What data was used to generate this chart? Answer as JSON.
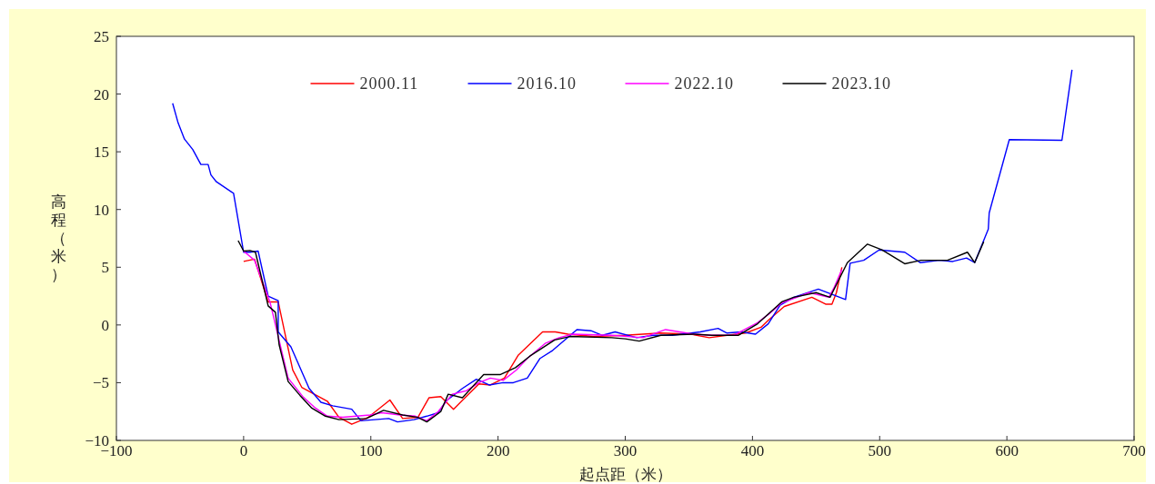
{
  "chart_data": {
    "type": "line",
    "xlabel": "起点距（米）",
    "ylabel": "高程（米）",
    "xlim": [
      -100,
      700
    ],
    "xticks": [
      -100,
      0,
      100,
      200,
      300,
      400,
      500,
      600,
      700
    ],
    "ylim": [
      -10,
      25
    ],
    "yticks": [
      -10,
      -5,
      0,
      5,
      10,
      15,
      20,
      25
    ],
    "legend": "top",
    "grid": false,
    "series": [
      {
        "name": "2000.11",
        "color": "#ff0000",
        "x": [
          0,
          8.6,
          19.3,
          27.2,
          38.6,
          45.7,
          65.8,
          75,
          85,
          98,
          115,
          125,
          137,
          145.8,
          155,
          165,
          185,
          194,
          205,
          216,
          235,
          245,
          255,
          275,
          299.5,
          328,
          351.7,
          366,
          380,
          394.6,
          406.7,
          412.4,
          425,
          446.7,
          457.5,
          462.5,
          466,
          470.3
        ],
        "values": [
          5.5,
          5.7,
          2.0,
          2.0,
          -3.9,
          -5.4,
          -6.6,
          -8.0,
          -8.6,
          -8.0,
          -6.5,
          -8.1,
          -8.0,
          -6.3,
          -6.2,
          -7.3,
          -5.1,
          -5.2,
          -4.6,
          -2.6,
          -0.6,
          -0.6,
          -0.8,
          -1.0,
          -0.9,
          -0.7,
          -0.8,
          -1.1,
          -0.9,
          -0.7,
          -0.2,
          0.4,
          1.6,
          2.4,
          1.8,
          1.8,
          2.8,
          5.0
        ]
      },
      {
        "name": "2016.10",
        "color": "#0000ff",
        "x": [
          -55.8,
          -51.5,
          -46.5,
          -40,
          -33.6,
          -27.9,
          -25.7,
          -21.4,
          -7.9,
          0,
          5,
          11.4,
          19.3,
          27.2,
          27.2,
          37.2,
          51.5,
          60.8,
          70,
          85,
          92.2,
          114,
          121,
          134,
          144,
          153,
          159,
          172,
          183,
          193,
          204,
          212,
          223,
          233,
          243,
          262,
          273,
          282,
          292,
          309,
          322,
          337,
          359,
          373,
          380,
          391,
          402.4,
          412.4,
          421.7,
          432.5,
          451.8,
          473.2,
          476.8,
          487.5,
          499.6,
          519.7,
          531.8,
          546.8,
          557.5,
          568.3,
          574.7,
          585.4,
          586.1,
          601.9,
          643.3,
          651.2
        ],
        "values": [
          19.2,
          17.5,
          16.1,
          15.2,
          13.9,
          13.9,
          13.0,
          12.4,
          11.4,
          6.3,
          6.3,
          6.4,
          2.5,
          2.1,
          -0.6,
          -1.9,
          -5.5,
          -6.7,
          -7.0,
          -7.3,
          -8.3,
          -8.1,
          -8.4,
          -8.2,
          -7.9,
          -7.6,
          -6.6,
          -5.5,
          -4.7,
          -5.2,
          -5.0,
          -5.0,
          -4.6,
          -2.9,
          -2.2,
          -0.4,
          -0.5,
          -0.9,
          -0.6,
          -1.1,
          -0.9,
          -0.9,
          -0.6,
          -0.3,
          -0.7,
          -0.6,
          -0.8,
          0.1,
          1.7,
          2.4,
          3.1,
          2.2,
          5.35,
          5.6,
          6.5,
          6.3,
          5.4,
          5.6,
          5.5,
          5.8,
          5.4,
          8.3,
          9.7,
          16.05,
          16.0,
          22.1
        ]
      },
      {
        "name": "2022.10",
        "color": "#ff00ff",
        "x": [
          0,
          8.6,
          20.7,
          35,
          46.5,
          56.5,
          65.8,
          78,
          99.4,
          108.6,
          123,
          135,
          144,
          153,
          164,
          175,
          185,
          194,
          204,
          214.4,
          223,
          237,
          248,
          258.8,
          289.5,
          313.8,
          331.7,
          353.8,
          368,
          385,
          404,
          412.4,
          423,
          444.6,
          460,
          464,
          470.3
        ],
        "values": [
          6.4,
          5.6,
          2.0,
          -4.6,
          -6.2,
          -7.2,
          -7.9,
          -8.0,
          -7.8,
          -7.6,
          -7.8,
          -7.9,
          -8.3,
          -7.5,
          -6.0,
          -5.7,
          -5.0,
          -4.6,
          -4.8,
          -3.9,
          -2.9,
          -1.6,
          -1.1,
          -0.8,
          -0.9,
          -1.1,
          -0.4,
          -0.8,
          -0.9,
          -0.9,
          0.2,
          0.9,
          1.9,
          2.8,
          2.4,
          3.2,
          4.8
        ]
      },
      {
        "name": "2023.10",
        "color": "#000000",
        "x": [
          -4.3,
          0,
          5,
          9.3,
          19.3,
          25,
          27.9,
          35,
          44.3,
          53.6,
          64.3,
          75,
          96.5,
          110,
          125,
          137,
          144,
          155,
          160.8,
          172,
          188.7,
          201.6,
          213.7,
          225,
          244.5,
          256.6,
          289.5,
          300,
          311,
          328,
          353.8,
          368,
          388.8,
          404,
          423,
          432.5,
          450,
          461,
          474.6,
          490.4,
          501.8,
          519.7,
          532.5,
          553.3,
          569,
          574.7,
          581.8
        ],
        "values": [
          7.3,
          6.4,
          6.45,
          6.3,
          1.65,
          1.1,
          -1.7,
          -4.9,
          -6.1,
          -7.2,
          -7.9,
          -8.2,
          -8.1,
          -7.4,
          -7.8,
          -8.0,
          -8.4,
          -7.5,
          -6.0,
          -6.3,
          -4.3,
          -4.3,
          -3.7,
          -2.7,
          -1.3,
          -1.0,
          -1.1,
          -1.2,
          -1.4,
          -0.9,
          -0.8,
          -0.9,
          -0.9,
          0.1,
          2.0,
          2.4,
          2.8,
          2.4,
          5.4,
          7.0,
          6.5,
          5.3,
          5.6,
          5.6,
          6.3,
          5.4,
          7.2
        ]
      }
    ]
  }
}
